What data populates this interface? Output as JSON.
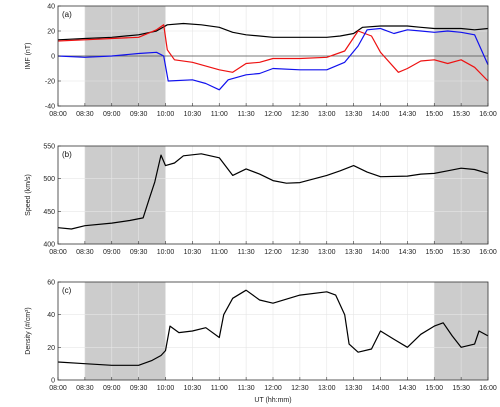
{
  "colors": {
    "shade": "#cccccc",
    "grid": "#e6e6e6",
    "axis": "#333333",
    "black": "#000000",
    "red": "#ee1111",
    "blue": "#1111ee"
  },
  "chart_data": [
    {
      "type": "line",
      "label": "(a)",
      "ylabel": "IMF (nT)",
      "xlabel": "",
      "xlim": [
        "08:00",
        "16:00"
      ],
      "ylim": [
        -40,
        40
      ],
      "yticks": [
        -40,
        -20,
        0,
        20,
        40
      ],
      "xticks": [
        "08:00",
        "08:30",
        "09:00",
        "09:30",
        "10:00",
        "10:30",
        "11:00",
        "11:30",
        "12:00",
        "12:30",
        "13:00",
        "13:30",
        "14:00",
        "14:30",
        "15:00",
        "15:30",
        "16:00"
      ],
      "shaded": [
        [
          "08:30",
          "10:00"
        ],
        [
          "15:00",
          "16:00"
        ]
      ],
      "zero_line": true,
      "grid": true,
      "series": [
        {
          "color": "black",
          "points": [
            [
              "08:00",
              13
            ],
            [
              "08:30",
              14
            ],
            [
              "09:00",
              15
            ],
            [
              "09:30",
              17
            ],
            [
              "09:50",
              20
            ],
            [
              "10:02",
              25
            ],
            [
              "10:20",
              26
            ],
            [
              "10:40",
              25
            ],
            [
              "11:00",
              23
            ],
            [
              "11:15",
              19
            ],
            [
              "11:30",
              17
            ],
            [
              "11:45",
              16
            ],
            [
              "12:00",
              15
            ],
            [
              "12:30",
              15
            ],
            [
              "13:00",
              15
            ],
            [
              "13:15",
              16
            ],
            [
              "13:30",
              18
            ],
            [
              "13:40",
              23
            ],
            [
              "14:00",
              24
            ],
            [
              "14:30",
              24
            ],
            [
              "14:45",
              23
            ],
            [
              "15:00",
              22
            ],
            [
              "15:30",
              22
            ],
            [
              "15:45",
              21
            ],
            [
              "16:00",
              22
            ]
          ]
        },
        {
          "color": "red",
          "points": [
            [
              "08:00",
              12
            ],
            [
              "08:30",
              13
            ],
            [
              "09:00",
              14
            ],
            [
              "09:30",
              15
            ],
            [
              "09:50",
              21
            ],
            [
              "09:58",
              25
            ],
            [
              "10:02",
              5
            ],
            [
              "10:10",
              -3
            ],
            [
              "10:30",
              -5
            ],
            [
              "11:00",
              -11
            ],
            [
              "11:15",
              -13
            ],
            [
              "11:30",
              -6
            ],
            [
              "11:45",
              -5
            ],
            [
              "12:00",
              -2
            ],
            [
              "12:30",
              -2
            ],
            [
              "13:00",
              -1
            ],
            [
              "13:20",
              4
            ],
            [
              "13:35",
              20
            ],
            [
              "13:50",
              16
            ],
            [
              "14:00",
              3
            ],
            [
              "14:20",
              -13
            ],
            [
              "14:30",
              -10
            ],
            [
              "14:45",
              -4
            ],
            [
              "15:00",
              -3
            ],
            [
              "15:15",
              -6
            ],
            [
              "15:30",
              -3
            ],
            [
              "15:45",
              -9
            ],
            [
              "16:00",
              -20
            ]
          ]
        },
        {
          "color": "blue",
          "points": [
            [
              "08:00",
              0
            ],
            [
              "08:30",
              -1
            ],
            [
              "09:00",
              0
            ],
            [
              "09:30",
              2
            ],
            [
              "09:50",
              3
            ],
            [
              "09:58",
              0
            ],
            [
              "10:03",
              -20
            ],
            [
              "10:30",
              -19
            ],
            [
              "10:45",
              -22
            ],
            [
              "11:00",
              -27
            ],
            [
              "11:10",
              -19
            ],
            [
              "11:30",
              -15
            ],
            [
              "11:45",
              -14
            ],
            [
              "12:00",
              -10
            ],
            [
              "12:30",
              -11
            ],
            [
              "13:00",
              -11
            ],
            [
              "13:20",
              -5
            ],
            [
              "13:35",
              8
            ],
            [
              "13:45",
              21
            ],
            [
              "14:00",
              22
            ],
            [
              "14:15",
              18
            ],
            [
              "14:30",
              21
            ],
            [
              "14:45",
              20
            ],
            [
              "15:00",
              19
            ],
            [
              "15:15",
              20
            ],
            [
              "15:30",
              19
            ],
            [
              "15:45",
              17
            ],
            [
              "16:00",
              -7
            ]
          ]
        }
      ]
    },
    {
      "type": "line",
      "label": "(b)",
      "ylabel": "Speed (km/s)",
      "xlabel": "",
      "xlim": [
        "08:00",
        "16:00"
      ],
      "ylim": [
        400,
        550
      ],
      "yticks": [
        400,
        450,
        500,
        550
      ],
      "xticks": [
        "08:00",
        "08:30",
        "09:00",
        "09:30",
        "10:00",
        "10:30",
        "11:00",
        "11:30",
        "12:00",
        "12:30",
        "13:00",
        "13:30",
        "14:00",
        "14:30",
        "15:00",
        "15:30",
        "16:00"
      ],
      "shaded": [
        [
          "08:30",
          "10:00"
        ],
        [
          "15:00",
          "16:00"
        ]
      ],
      "zero_line": false,
      "grid": true,
      "series": [
        {
          "color": "black",
          "points": [
            [
              "08:00",
              425
            ],
            [
              "08:15",
              423
            ],
            [
              "08:30",
              428
            ],
            [
              "09:00",
              432
            ],
            [
              "09:20",
              436
            ],
            [
              "09:35",
              440
            ],
            [
              "09:42",
              470
            ],
            [
              "09:48",
              495
            ],
            [
              "09:55",
              536
            ],
            [
              "10:00",
              520
            ],
            [
              "10:10",
              524
            ],
            [
              "10:20",
              535
            ],
            [
              "10:40",
              538
            ],
            [
              "11:00",
              532
            ],
            [
              "11:15",
              505
            ],
            [
              "11:30",
              515
            ],
            [
              "11:45",
              507
            ],
            [
              "12:00",
              497
            ],
            [
              "12:15",
              493
            ],
            [
              "12:30",
              494
            ],
            [
              "13:00",
              505
            ],
            [
              "13:15",
              512
            ],
            [
              "13:30",
              520
            ],
            [
              "13:45",
              510
            ],
            [
              "14:00",
              503
            ],
            [
              "14:30",
              504
            ],
            [
              "14:45",
              507
            ],
            [
              "15:00",
              508
            ],
            [
              "15:15",
              512
            ],
            [
              "15:30",
              516
            ],
            [
              "15:45",
              514
            ],
            [
              "16:00",
              508
            ]
          ]
        }
      ]
    },
    {
      "type": "line",
      "label": "(c)",
      "ylabel": "Density (#/cm³)",
      "xlabel": "UT (hh:mm)",
      "xlim": [
        "08:00",
        "16:00"
      ],
      "ylim": [
        0,
        60
      ],
      "yticks": [
        0,
        20,
        40,
        60
      ],
      "xticks": [
        "08:00",
        "08:30",
        "09:00",
        "09:30",
        "10:00",
        "10:30",
        "11:00",
        "11:30",
        "12:00",
        "12:30",
        "13:00",
        "13:30",
        "14:00",
        "14:30",
        "15:00",
        "15:30",
        "16:00"
      ],
      "shaded": [
        [
          "08:30",
          "10:00"
        ],
        [
          "15:00",
          "16:00"
        ]
      ],
      "zero_line": false,
      "grid": true,
      "series": [
        {
          "color": "black",
          "points": [
            [
              "08:00",
              11
            ],
            [
              "08:30",
              10
            ],
            [
              "09:00",
              9
            ],
            [
              "09:30",
              9
            ],
            [
              "09:45",
              12
            ],
            [
              "09:55",
              15
            ],
            [
              "10:00",
              18
            ],
            [
              "10:05",
              33
            ],
            [
              "10:15",
              29
            ],
            [
              "10:30",
              30
            ],
            [
              "10:45",
              32
            ],
            [
              "11:00",
              26
            ],
            [
              "11:05",
              40
            ],
            [
              "11:15",
              50
            ],
            [
              "11:30",
              55
            ],
            [
              "11:45",
              49
            ],
            [
              "12:00",
              47
            ],
            [
              "12:30",
              52
            ],
            [
              "13:00",
              54
            ],
            [
              "13:10",
              52
            ],
            [
              "13:20",
              40
            ],
            [
              "13:25",
              22
            ],
            [
              "13:35",
              17
            ],
            [
              "13:50",
              19
            ],
            [
              "14:00",
              30
            ],
            [
              "14:15",
              25
            ],
            [
              "14:30",
              20
            ],
            [
              "14:45",
              28
            ],
            [
              "15:00",
              33
            ],
            [
              "15:10",
              35
            ],
            [
              "15:20",
              27
            ],
            [
              "15:30",
              20
            ],
            [
              "15:45",
              22
            ],
            [
              "15:50",
              30
            ],
            [
              "16:00",
              27
            ]
          ]
        }
      ]
    }
  ]
}
